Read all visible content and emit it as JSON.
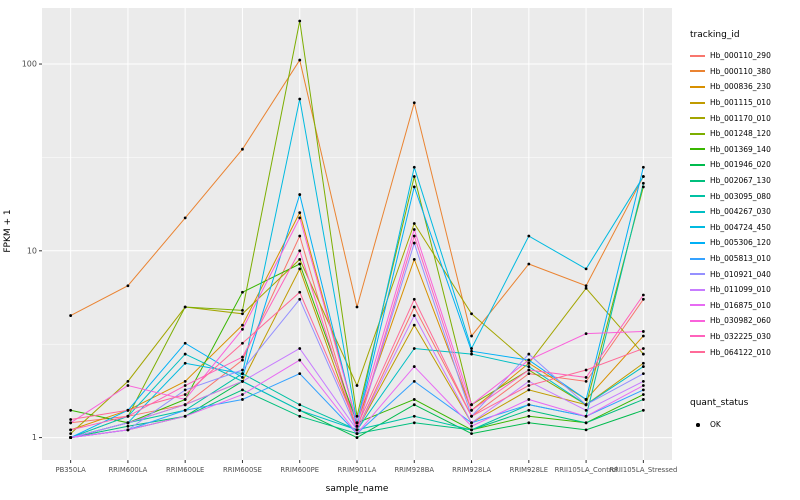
{
  "figure": {
    "background": "#FFFFFF",
    "panel_background": "#EBEBEB",
    "gridline_color": "#FFFFFF",
    "point_color": "#000000",
    "tick_text_color": "#4D4D4D"
  },
  "legend": {
    "tracking_title": "tracking_id",
    "quant_title": "quant_status",
    "quant_value": "OK"
  },
  "chart_data": {
    "type": "line",
    "title": "",
    "xlabel": "sample_name",
    "ylabel": "FPKM + 1",
    "y_scale": "log10",
    "ylim": [
      1,
      180
    ],
    "y_ticks": [
      1,
      10,
      100
    ],
    "grid": true,
    "legend_position": "right",
    "categories": [
      "PB350LA",
      "RRIM600LA",
      "RRIM600LE",
      "RRIM600SE",
      "RRIM600PE",
      "RRIM901LA",
      "RRIM928BA",
      "RRIM928LA",
      "RRIM928LE",
      "RRII105LA_Control",
      "RRII105LA_Stressed"
    ],
    "series": [
      {
        "name": "Hb_000110_290",
        "color": "#F8766D",
        "values": [
          1.2,
          1.3,
          1.5,
          2.6,
          12,
          1.1,
          5,
          1.3,
          2.2,
          2.0,
          5.5
        ]
      },
      {
        "name": "Hb_000110_380",
        "color": "#EA8331",
        "values": [
          4.5,
          6.5,
          15,
          35,
          105,
          5,
          62,
          3.5,
          8.5,
          6.5,
          25
        ]
      },
      {
        "name": "Hb_000836_230",
        "color": "#D89000",
        "values": [
          1.1,
          1.4,
          2.0,
          4.0,
          16,
          1.2,
          9,
          1.4,
          2.5,
          1.6,
          3.5
        ]
      },
      {
        "name": "Hb_001115_010",
        "color": "#C09B00",
        "values": [
          1.0,
          1.2,
          1.5,
          2.0,
          8,
          1.1,
          4,
          1.2,
          1.8,
          1.5,
          2.5
        ]
      },
      {
        "name": "Hb_001170_010",
        "color": "#A3A500",
        "values": [
          1.05,
          2.0,
          5.0,
          4.6,
          9,
          1.9,
          14,
          4.6,
          2.5,
          6.3,
          2.8
        ]
      },
      {
        "name": "Hb_001248_120",
        "color": "#7CAE00",
        "values": [
          1.0,
          1.3,
          5.0,
          4.8,
          170,
          1.3,
          25,
          1.5,
          2.3,
          1.5,
          22
        ]
      },
      {
        "name": "Hb_001369_140",
        "color": "#39B600",
        "values": [
          1.4,
          1.2,
          1.6,
          6.0,
          8.5,
          1.2,
          1.6,
          1.1,
          1.3,
          1.2,
          1.7
        ]
      },
      {
        "name": "Hb_001946_020",
        "color": "#00BB4E",
        "values": [
          1.0,
          1.1,
          1.3,
          2.0,
          1.4,
          1.0,
          1.5,
          1.05,
          1.2,
          1.1,
          1.4
        ]
      },
      {
        "name": "Hb_002067_130",
        "color": "#00BF7D",
        "values": [
          1.0,
          1.15,
          1.3,
          1.8,
          1.3,
          1.05,
          1.2,
          1.1,
          1.4,
          1.2,
          1.6
        ]
      },
      {
        "name": "Hb_003095_080",
        "color": "#00C1A3",
        "values": [
          1.0,
          1.2,
          1.4,
          2.2,
          1.5,
          1.1,
          1.3,
          1.1,
          1.5,
          1.3,
          23
        ]
      },
      {
        "name": "Hb_004267_030",
        "color": "#00BFC4",
        "values": [
          1.0,
          1.3,
          2.8,
          2.0,
          1.4,
          1.1,
          3.0,
          2.8,
          2.4,
          1.5,
          2.4
        ]
      },
      {
        "name": "Hb_004724_450",
        "color": "#00BAE0",
        "values": [
          1.0,
          1.2,
          2.5,
          2.2,
          65,
          1.2,
          28,
          3.0,
          12,
          8.0,
          25
        ]
      },
      {
        "name": "Hb_005306_120",
        "color": "#00B0F6",
        "values": [
          1.0,
          1.4,
          3.2,
          2.1,
          20,
          1.15,
          22,
          2.9,
          2.6,
          1.6,
          28
        ]
      },
      {
        "name": "Hb_005813_010",
        "color": "#35A2FF",
        "values": [
          1.0,
          1.1,
          1.4,
          1.6,
          2.2,
          1.05,
          2.0,
          1.2,
          1.5,
          1.3,
          1.8
        ]
      },
      {
        "name": "Hb_010921_040",
        "color": "#9590FF",
        "values": [
          1.0,
          1.1,
          1.8,
          2.3,
          5.5,
          1.1,
          11,
          1.3,
          2.8,
          1.5,
          2.2
        ]
      },
      {
        "name": "Hb_011099_010",
        "color": "#C77CFF",
        "values": [
          1.0,
          1.2,
          1.5,
          2.0,
          3.0,
          1.1,
          4.5,
          1.2,
          2.0,
          1.4,
          2.0
        ]
      },
      {
        "name": "Hb_016875_010",
        "color": "#E76BF3",
        "values": [
          1.0,
          1.1,
          1.3,
          1.7,
          2.6,
          1.05,
          2.4,
          1.15,
          1.6,
          1.3,
          1.9
        ]
      },
      {
        "name": "Hb_030982_060",
        "color": "#FA62DB",
        "values": [
          1.2,
          1.9,
          1.6,
          3.8,
          15,
          1.2,
          13,
          1.5,
          2.6,
          3.6,
          3.7
        ]
      },
      {
        "name": "Hb_032225_030",
        "color": "#FF62BC",
        "values": [
          1.1,
          1.3,
          1.9,
          2.7,
          10,
          1.1,
          12,
          1.4,
          2.3,
          2.1,
          5.8
        ]
      },
      {
        "name": "Hb_064122_010",
        "color": "#FF6A98",
        "values": [
          1.25,
          1.4,
          1.7,
          3.2,
          6.0,
          1.15,
          5.5,
          1.3,
          1.9,
          2.3,
          3.0
        ]
      }
    ],
    "quant_status": "OK"
  }
}
